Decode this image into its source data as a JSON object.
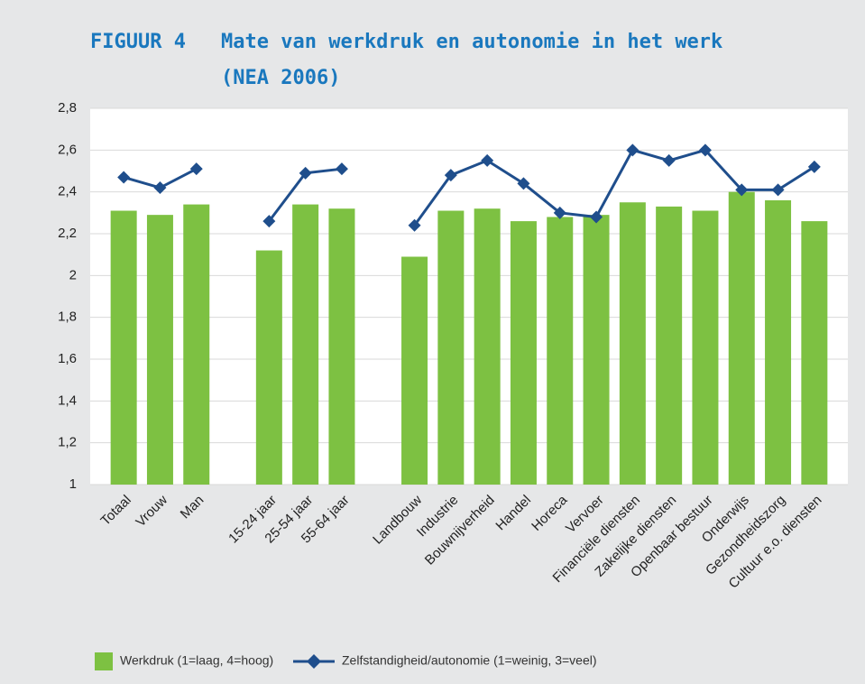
{
  "chart_data": {
    "type": "bar_line",
    "figure_label": "FIGUUR 4",
    "title_lines": [
      "Mate van werkdruk en autonomie in het werk",
      "(NEA 2006)"
    ],
    "categories": [
      "Totaal",
      "Vrouw",
      "Man",
      null,
      "15-24 jaar",
      "25-54 jaar",
      "55-64 jaar",
      null,
      "Landbouw",
      "Industrie",
      "Bouwnijverheid",
      "Handel",
      "Horeca",
      "Vervoer",
      "Financiële diensten",
      "Zakelijke diensten",
      "Openbaar bestuur",
      "Onderwijs",
      "Gezondheidszorg",
      "Cultuur e.o. diensten"
    ],
    "series": [
      {
        "name": "Werkdruk (1=laag, 4=hoog)",
        "type": "bar",
        "color": "#7dc142",
        "values": [
          2.31,
          2.29,
          2.34,
          null,
          2.12,
          2.34,
          2.32,
          null,
          2.09,
          2.31,
          2.32,
          2.26,
          2.28,
          2.29,
          2.35,
          2.33,
          2.31,
          2.4,
          2.36,
          2.26
        ]
      },
      {
        "name": "Zelfstandigheid/autonomie (1=weinig, 3=veel)",
        "type": "line",
        "color": "#1f4e8c",
        "values": [
          2.47,
          2.42,
          2.51,
          null,
          2.26,
          2.49,
          2.51,
          null,
          2.24,
          2.48,
          2.55,
          2.44,
          2.3,
          2.28,
          2.6,
          2.55,
          2.6,
          2.41,
          2.41,
          2.52
        ]
      }
    ],
    "ylim": [
      1,
      2.8
    ],
    "yticks": [
      1,
      {
        "value": 1.2,
        "label": "1,2"
      },
      {
        "value": 1.4,
        "label": "1,4"
      },
      {
        "value": 1.6,
        "label": "1,6"
      },
      {
        "value": 1.8,
        "label": "1,8"
      },
      2,
      {
        "value": 2.2,
        "label": "2,2"
      },
      {
        "value": 2.4,
        "label": "2,4"
      },
      {
        "value": 2.6,
        "label": "2,6"
      },
      {
        "value": 2.8,
        "label": "2,8"
      }
    ],
    "grid": true,
    "legend": "bottom"
  }
}
